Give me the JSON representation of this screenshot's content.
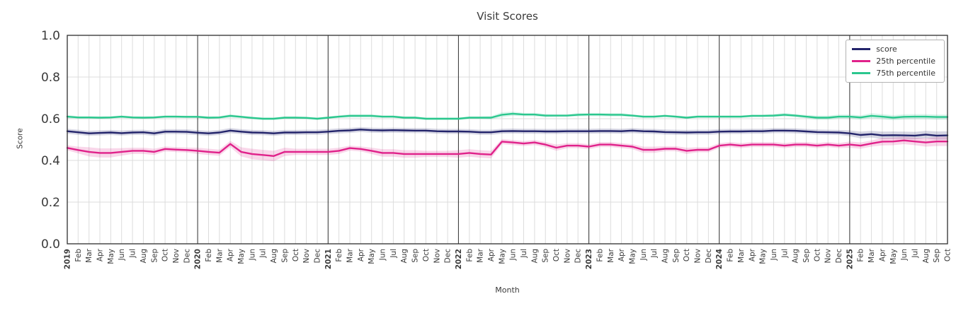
{
  "chart_data": {
    "type": "line",
    "title": "Visit Scores",
    "xlabel": "Month",
    "ylabel": "Score",
    "ylim": [
      0.0,
      1.0
    ],
    "yticks": [
      0.0,
      0.2,
      0.4,
      0.6,
      0.8,
      1.0
    ],
    "legend_position": "upper right",
    "grid": true,
    "x": [
      "2019",
      "Feb",
      "Mar",
      "Apr",
      "May",
      "Jun",
      "Jul",
      "Aug",
      "Sep",
      "Oct",
      "Nov",
      "Dec",
      "2020",
      "Feb",
      "Mar",
      "Apr",
      "May",
      "Jun",
      "Jul",
      "Aug",
      "Sep",
      "Oct",
      "Nov",
      "Dec",
      "2021",
      "Feb",
      "Mar",
      "Apr",
      "May",
      "Jun",
      "Jul",
      "Aug",
      "Sep",
      "Oct",
      "Nov",
      "Dec",
      "2022",
      "Feb",
      "Mar",
      "Apr",
      "May",
      "Jun",
      "Jul",
      "Aug",
      "Sep",
      "Oct",
      "Nov",
      "Dec",
      "2023",
      "Feb",
      "Mar",
      "Apr",
      "May",
      "Jun",
      "Jul",
      "Aug",
      "Sep",
      "Oct",
      "Nov",
      "Dec",
      "2024",
      "Feb",
      "Mar",
      "Apr",
      "May",
      "Jun",
      "Jul",
      "Aug",
      "Sep",
      "Oct",
      "Nov",
      "Dec",
      "2025",
      "Feb",
      "Mar",
      "Apr",
      "May",
      "Jun",
      "Jul",
      "Aug",
      "Sep",
      "Oct"
    ],
    "year_boundaries": [
      0,
      12,
      24,
      36,
      48,
      60,
      72
    ],
    "style": {
      "background": "#ffffff",
      "grid_color": "#dcdcdc",
      "frame_color": "#2e2e2e",
      "text_color": "#3a3a3a",
      "band_opacity": 0.18
    },
    "series": [
      {
        "name": "score",
        "color": "#23246b",
        "values": [
          0.54,
          0.535,
          0.53,
          0.532,
          0.534,
          0.531,
          0.534,
          0.535,
          0.53,
          0.538,
          0.538,
          0.537,
          0.533,
          0.53,
          0.534,
          0.543,
          0.538,
          0.534,
          0.533,
          0.53,
          0.534,
          0.534,
          0.535,
          0.535,
          0.538,
          0.542,
          0.544,
          0.548,
          0.545,
          0.544,
          0.545,
          0.544,
          0.543,
          0.543,
          0.54,
          0.539,
          0.539,
          0.538,
          0.535,
          0.535,
          0.54,
          0.541,
          0.54,
          0.54,
          0.539,
          0.539,
          0.54,
          0.54,
          0.54,
          0.541,
          0.541,
          0.54,
          0.543,
          0.54,
          0.539,
          0.536,
          0.535,
          0.534,
          0.535,
          0.535,
          0.538,
          0.539,
          0.539,
          0.54,
          0.54,
          0.543,
          0.543,
          0.542,
          0.539,
          0.536,
          0.535,
          0.534,
          0.53,
          0.522,
          0.526,
          0.52,
          0.521,
          0.52,
          0.519,
          0.524,
          0.519,
          0.52
        ],
        "band": [
          0.012,
          0.012,
          0.012,
          0.012,
          0.012,
          0.012,
          0.012,
          0.012,
          0.012,
          0.012,
          0.012,
          0.012,
          0.012,
          0.012,
          0.012,
          0.012,
          0.012,
          0.012,
          0.012,
          0.012,
          0.012,
          0.012,
          0.012,
          0.012,
          0.012,
          0.012,
          0.012,
          0.012,
          0.012,
          0.012,
          0.012,
          0.012,
          0.012,
          0.012,
          0.012,
          0.012,
          0.012,
          0.012,
          0.012,
          0.012,
          0.012,
          0.012,
          0.012,
          0.012,
          0.012,
          0.012,
          0.012,
          0.012,
          0.012,
          0.012,
          0.012,
          0.012,
          0.012,
          0.012,
          0.012,
          0.012,
          0.012,
          0.012,
          0.012,
          0.012,
          0.012,
          0.012,
          0.012,
          0.012,
          0.012,
          0.012,
          0.012,
          0.012,
          0.012,
          0.012,
          0.012,
          0.012,
          0.014,
          0.016,
          0.016,
          0.018,
          0.018,
          0.018,
          0.018,
          0.018,
          0.02,
          0.02
        ]
      },
      {
        "name": "25th percentile",
        "color": "#e0218a",
        "values": [
          0.46,
          0.45,
          0.441,
          0.436,
          0.436,
          0.441,
          0.446,
          0.446,
          0.441,
          0.455,
          0.452,
          0.45,
          0.446,
          0.441,
          0.437,
          0.479,
          0.441,
          0.431,
          0.426,
          0.421,
          0.441,
          0.441,
          0.441,
          0.441,
          0.441,
          0.446,
          0.459,
          0.455,
          0.446,
          0.436,
          0.436,
          0.431,
          0.431,
          0.431,
          0.431,
          0.431,
          0.431,
          0.436,
          0.431,
          0.428,
          0.49,
          0.486,
          0.481,
          0.486,
          0.476,
          0.461,
          0.471,
          0.471,
          0.466,
          0.476,
          0.476,
          0.471,
          0.466,
          0.451,
          0.451,
          0.456,
          0.456,
          0.446,
          0.451,
          0.451,
          0.471,
          0.476,
          0.471,
          0.476,
          0.476,
          0.476,
          0.471,
          0.476,
          0.476,
          0.471,
          0.476,
          0.471,
          0.476,
          0.471,
          0.481,
          0.49,
          0.491,
          0.496,
          0.491,
          0.486,
          0.491,
          0.491
        ],
        "band": [
          0.012,
          0.016,
          0.022,
          0.022,
          0.022,
          0.018,
          0.015,
          0.015,
          0.015,
          0.012,
          0.012,
          0.012,
          0.015,
          0.015,
          0.015,
          0.015,
          0.022,
          0.025,
          0.025,
          0.025,
          0.02,
          0.015,
          0.015,
          0.015,
          0.015,
          0.015,
          0.012,
          0.012,
          0.015,
          0.018,
          0.018,
          0.018,
          0.018,
          0.015,
          0.015,
          0.015,
          0.018,
          0.018,
          0.018,
          0.018,
          0.012,
          0.012,
          0.012,
          0.012,
          0.012,
          0.015,
          0.012,
          0.012,
          0.012,
          0.012,
          0.012,
          0.012,
          0.012,
          0.015,
          0.015,
          0.012,
          0.012,
          0.015,
          0.012,
          0.012,
          0.012,
          0.012,
          0.012,
          0.012,
          0.012,
          0.012,
          0.012,
          0.012,
          0.012,
          0.012,
          0.012,
          0.012,
          0.015,
          0.015,
          0.015,
          0.018,
          0.018,
          0.018,
          0.018,
          0.02,
          0.022,
          0.022
        ]
      },
      {
        "name": "75th percentile",
        "color": "#2bc78e",
        "values": [
          0.61,
          0.606,
          0.606,
          0.605,
          0.606,
          0.61,
          0.606,
          0.605,
          0.606,
          0.61,
          0.61,
          0.609,
          0.609,
          0.605,
          0.606,
          0.614,
          0.609,
          0.604,
          0.6,
          0.6,
          0.605,
          0.605,
          0.604,
          0.6,
          0.605,
          0.61,
          0.614,
          0.614,
          0.614,
          0.61,
          0.61,
          0.605,
          0.605,
          0.6,
          0.6,
          0.6,
          0.6,
          0.605,
          0.605,
          0.605,
          0.619,
          0.624,
          0.62,
          0.62,
          0.615,
          0.615,
          0.615,
          0.619,
          0.62,
          0.62,
          0.619,
          0.619,
          0.615,
          0.61,
          0.61,
          0.614,
          0.61,
          0.605,
          0.61,
          0.61,
          0.61,
          0.61,
          0.61,
          0.614,
          0.614,
          0.615,
          0.619,
          0.615,
          0.61,
          0.605,
          0.605,
          0.61,
          0.61,
          0.606,
          0.614,
          0.61,
          0.605,
          0.609,
          0.61,
          0.61,
          0.608,
          0.608
        ],
        "band": [
          0.008,
          0.006,
          0.006,
          0.006,
          0.006,
          0.006,
          0.006,
          0.006,
          0.006,
          0.006,
          0.006,
          0.006,
          0.006,
          0.006,
          0.006,
          0.008,
          0.006,
          0.006,
          0.006,
          0.006,
          0.006,
          0.006,
          0.006,
          0.006,
          0.006,
          0.006,
          0.008,
          0.008,
          0.008,
          0.006,
          0.006,
          0.006,
          0.006,
          0.006,
          0.006,
          0.006,
          0.006,
          0.006,
          0.006,
          0.008,
          0.012,
          0.01,
          0.008,
          0.008,
          0.008,
          0.006,
          0.006,
          0.008,
          0.008,
          0.008,
          0.008,
          0.008,
          0.006,
          0.006,
          0.006,
          0.006,
          0.006,
          0.006,
          0.006,
          0.006,
          0.006,
          0.006,
          0.006,
          0.006,
          0.006,
          0.008,
          0.008,
          0.008,
          0.008,
          0.01,
          0.01,
          0.01,
          0.01,
          0.01,
          0.012,
          0.012,
          0.012,
          0.012,
          0.012,
          0.012,
          0.012,
          0.012
        ]
      }
    ]
  }
}
